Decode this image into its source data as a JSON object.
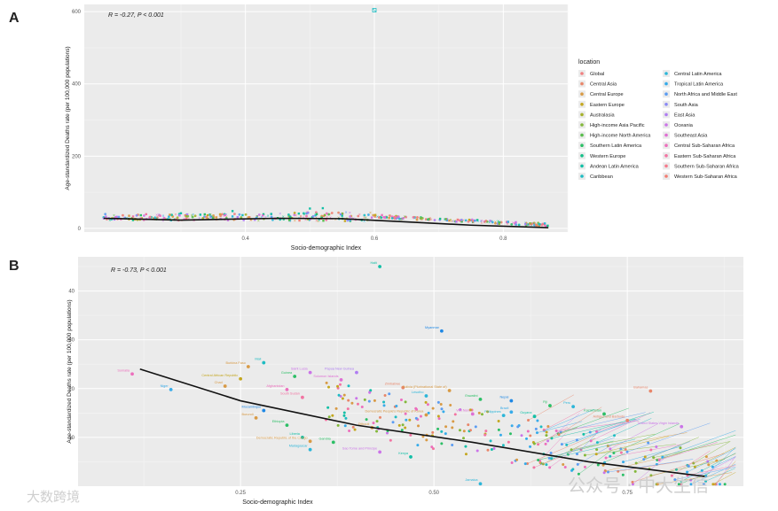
{
  "panels": {
    "a_label": "A",
    "b_label": "B"
  },
  "chart_data": [
    {
      "type": "scatter",
      "panel": "A",
      "annotation": "R = -0.27, P < 0.001",
      "xlabel": "Socio-demographic Index",
      "ylabel": "Age-standardized Deaths rate (per 100,000 populations)",
      "xlim": [
        0.15,
        0.9
      ],
      "ylim": [
        -10,
        620
      ],
      "xticks": [
        0.4,
        0.6,
        0.8
      ],
      "yticks": [
        0,
        200,
        400,
        600
      ],
      "legend_title": "location",
      "legend_position": "right",
      "legend": [
        {
          "name": "Global",
          "color": "#f08080",
          "marker": "circle-open"
        },
        {
          "name": "Central Asia",
          "color": "#e8866a",
          "marker": "triangle-open"
        },
        {
          "name": "Central Europe",
          "color": "#d89a45",
          "marker": "plus"
        },
        {
          "name": "Eastern Europe",
          "color": "#c4a71f",
          "marker": "x"
        },
        {
          "name": "Australasia",
          "color": "#a5b12a",
          "marker": "diamond-open"
        },
        {
          "name": "High-income Asia Pacific",
          "color": "#83b83a",
          "marker": "triangle-down-open"
        },
        {
          "name": "High-income North America",
          "color": "#58bc4c",
          "marker": "square-x"
        },
        {
          "name": "Southern Latin America",
          "color": "#2cbf66",
          "marker": "star"
        },
        {
          "name": "Western Europe",
          "color": "#14bf88",
          "marker": "diamond-plus"
        },
        {
          "name": "Andean Latin America",
          "color": "#12bfa6",
          "marker": "circle-plus"
        },
        {
          "name": "Caribbean",
          "color": "#1ebcc2",
          "marker": "square-x"
        },
        {
          "name": "Central Latin America",
          "color": "#2cb6d9",
          "marker": "square"
        },
        {
          "name": "Tropical Latin America",
          "color": "#36abea",
          "marker": "circle"
        },
        {
          "name": "North Africa and Middle East",
          "color": "#5b9cf2",
          "marker": "square-open"
        },
        {
          "name": "South Asia",
          "color": "#8b8af5",
          "marker": "square"
        },
        {
          "name": "East Asia",
          "color": "#af7df2",
          "marker": "circle"
        },
        {
          "name": "Oceania",
          "color": "#cb74e8",
          "marker": "triangle"
        },
        {
          "name": "Southeast Asia",
          "color": "#df6fd4",
          "marker": "small-dot"
        },
        {
          "name": "Central Sub-Saharan Africa",
          "color": "#ec6fbd",
          "marker": "diamond"
        },
        {
          "name": "Eastern Sub-Saharan Africa",
          "color": "#f274a2",
          "marker": "small-dot"
        },
        {
          "name": "Southern Sub-Saharan Africa",
          "color": "#f57b8c",
          "marker": "small-dot"
        },
        {
          "name": "Western Sub-Saharan Africa",
          "color": "#f27d72",
          "marker": "small-dot"
        }
      ],
      "highlight_point": {
        "x": 0.6,
        "y": 604
      },
      "trend": {
        "x": [
          0.18,
          0.3,
          0.45,
          0.55,
          0.65,
          0.75,
          0.87
        ],
        "y": [
          28,
          23,
          28,
          27,
          18,
          9,
          2
        ]
      }
    },
    {
      "type": "scatter",
      "panel": "B",
      "annotation": "R = -0.73, P < 0.001",
      "xlabel": "Socio-demographic Index",
      "ylabel": "Age-standardized Deaths rate (per 100,000 populations)",
      "xlim": [
        0.04,
        0.9
      ],
      "ylim": [
        0,
        47
      ],
      "xticks": [
        0.25,
        0.5,
        0.75
      ],
      "xtick_labels": [
        "0.25",
        "0.50",
        "0.75"
      ],
      "yticks": [
        10,
        20,
        30,
        40
      ],
      "trend": {
        "x": [
          0.12,
          0.25,
          0.4,
          0.55,
          0.7,
          0.85
        ],
        "y": [
          24,
          17.5,
          12.5,
          9,
          5,
          2
        ]
      },
      "labeled_points": [
        {
          "name": "Haiti",
          "x": 0.43,
          "y": 45,
          "color": "#12bfa6"
        },
        {
          "name": "Myanmar",
          "x": 0.51,
          "y": 31.8,
          "color": "#1e88e5"
        },
        {
          "name": "Mali",
          "x": 0.28,
          "y": 25.3,
          "color": "#1ebcc2"
        },
        {
          "name": "Burkina Faso",
          "x": 0.26,
          "y": 24.5,
          "color": "#d89a45"
        },
        {
          "name": "Somalia",
          "x": 0.11,
          "y": 23,
          "color": "#ec6fbd"
        },
        {
          "name": "Guinea",
          "x": 0.32,
          "y": 22.5,
          "color": "#2cbf66"
        },
        {
          "name": "Saint Lucia",
          "x": 0.34,
          "y": 23.3,
          "color": "#cb74e8"
        },
        {
          "name": "Papua New Guinea",
          "x": 0.4,
          "y": 23.3,
          "color": "#af7df2"
        },
        {
          "name": "Central African Republic",
          "x": 0.25,
          "y": 22,
          "color": "#c4a71f"
        },
        {
          "name": "Solomon Islands",
          "x": 0.38,
          "y": 21.8,
          "color": "#df6fd4"
        },
        {
          "name": "Niger",
          "x": 0.16,
          "y": 19.8,
          "color": "#36abea"
        },
        {
          "name": "Chad",
          "x": 0.23,
          "y": 20.5,
          "color": "#d89a45"
        },
        {
          "name": "Afghanistan",
          "x": 0.31,
          "y": 19.8,
          "color": "#ec6fbd"
        },
        {
          "name": "South Sudan",
          "x": 0.33,
          "y": 18.2,
          "color": "#f274a2"
        },
        {
          "name": "Zimbabwe",
          "x": 0.46,
          "y": 20.2,
          "color": "#e8866a"
        },
        {
          "name": "Lesotho",
          "x": 0.49,
          "y": 18.5,
          "color": "#2cb6d9"
        },
        {
          "name": "Bolivia (Plurinational State of)",
          "x": 0.52,
          "y": 19.6,
          "color": "#d89a45"
        },
        {
          "name": "Bahamas",
          "x": 0.78,
          "y": 19.5,
          "color": "#e8866a"
        },
        {
          "name": "Mozambique",
          "x": 0.28,
          "y": 15.5,
          "color": "#1e88e5"
        },
        {
          "name": "Burundi",
          "x": 0.27,
          "y": 14,
          "color": "#d89a45"
        },
        {
          "name": "Ethiopia",
          "x": 0.31,
          "y": 12.5,
          "color": "#2cbf66"
        },
        {
          "name": "Liberia",
          "x": 0.33,
          "y": 10,
          "color": "#12bfa6"
        },
        {
          "name": "Madagascar",
          "x": 0.34,
          "y": 7.5,
          "color": "#2cb6d9"
        },
        {
          "name": "Gambia",
          "x": 0.37,
          "y": 9,
          "color": "#2cbf66"
        },
        {
          "name": "Democratic Republic of the Congo",
          "x": 0.34,
          "y": 9.2,
          "color": "#d89a45"
        },
        {
          "name": "Sao Tome and Principe",
          "x": 0.43,
          "y": 7,
          "color": "#cb74e8"
        },
        {
          "name": "Kenya",
          "x": 0.47,
          "y": 6,
          "color": "#12bfa6"
        },
        {
          "name": "Jamaica",
          "x": 0.56,
          "y": 0.5,
          "color": "#2cb6d9"
        },
        {
          "name": "Djibouti",
          "x": 0.42,
          "y": 12,
          "color": "#d89a45"
        },
        {
          "name": "Eswatini",
          "x": 0.56,
          "y": 17.8,
          "color": "#2cbf66"
        },
        {
          "name": "Nepal",
          "x": 0.6,
          "y": 17.5,
          "color": "#1e88e5"
        },
        {
          "name": "Fiji",
          "x": 0.65,
          "y": 16.5,
          "color": "#2cbf66"
        },
        {
          "name": "Guyana",
          "x": 0.63,
          "y": 14.3,
          "color": "#12bfa6"
        },
        {
          "name": "Peru",
          "x": 0.68,
          "y": 16.3,
          "color": "#2cb6d9"
        },
        {
          "name": "Kazakhstan",
          "x": 0.72,
          "y": 14.8,
          "color": "#2cbf66"
        },
        {
          "name": "Antigua and Barbuda",
          "x": 0.75,
          "y": 13.5,
          "color": "#e8866a"
        },
        {
          "name": "United States Virgin Islands",
          "x": 0.82,
          "y": 12.2,
          "color": "#cb74e8"
        },
        {
          "name": "Brazil",
          "x": 0.6,
          "y": 15.2,
          "color": "#36abea"
        },
        {
          "name": "Philippines",
          "x": 0.59,
          "y": 14.5,
          "color": "#2cb6d9"
        },
        {
          "name": "Viet Nam",
          "x": 0.55,
          "y": 14.8,
          "color": "#df6fd4"
        },
        {
          "name": "Democratic People's Republic of Korea",
          "x": 0.49,
          "y": 14.6,
          "color": "#d89a45"
        }
      ]
    }
  ],
  "watermark": {
    "left_text": "大数跨境",
    "right_text": "公众号 · 中大生信"
  }
}
